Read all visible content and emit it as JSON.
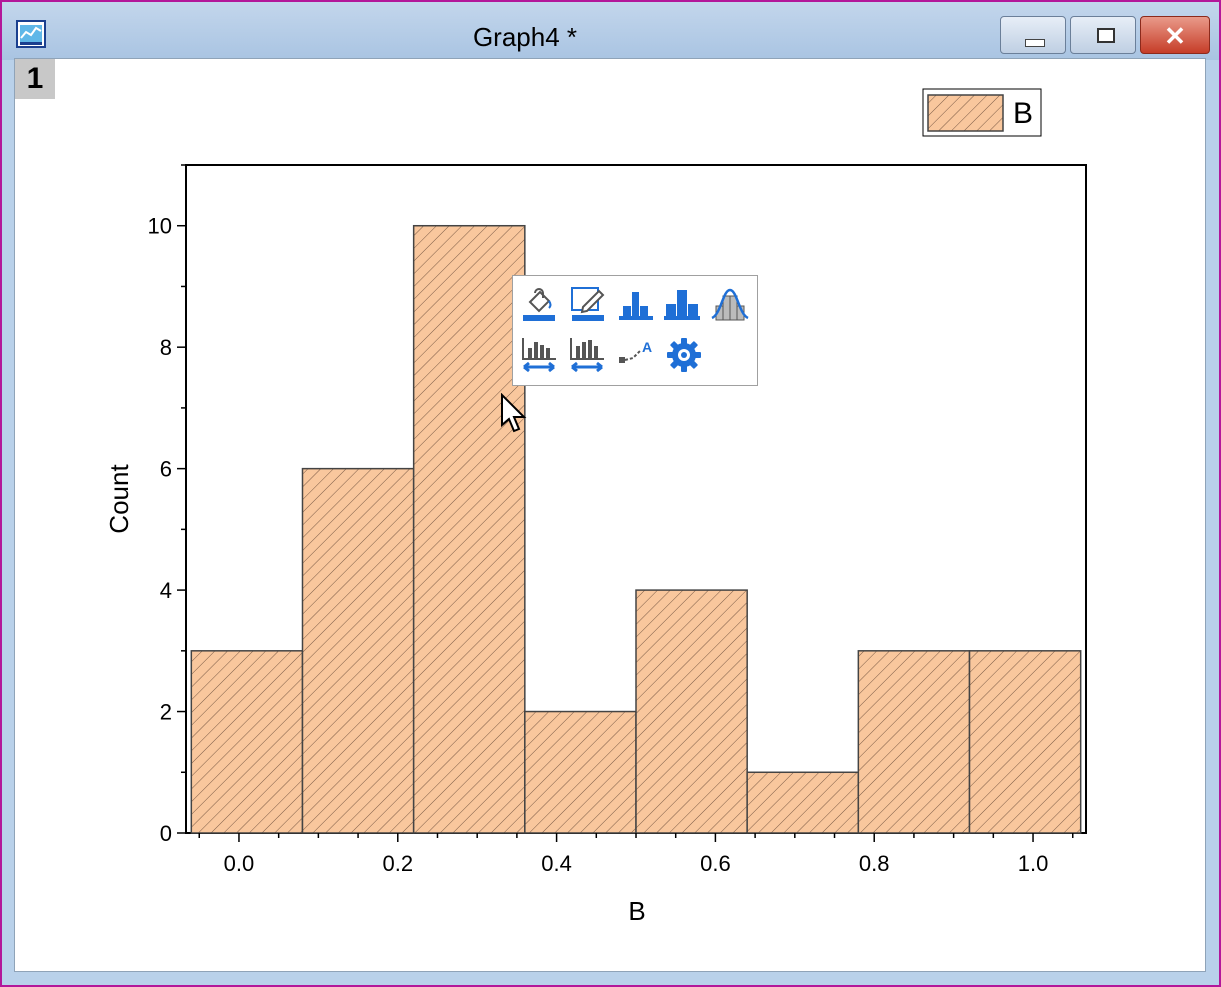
{
  "window": {
    "title": "Graph4 *",
    "layer_label": "1",
    "close_glyph": "✕",
    "buttons": [
      "minimize-icon",
      "maximize-icon",
      "close-icon"
    ]
  },
  "colors": {
    "bar_fill": "#f9c79d",
    "bar_stroke": "#444444",
    "hatch": "#7a5a45",
    "icon_blue": "#1f6fd6",
    "window_border": "#b3179a"
  },
  "chart_data": {
    "type": "bar",
    "title": "",
    "xlabel": "B",
    "ylabel": "Count",
    "xlim": [
      -0.0667,
      1.0667
    ],
    "ylim": [
      0,
      11
    ],
    "x_ticks": [
      "0.0",
      "0.2",
      "0.4",
      "0.6",
      "0.8",
      "1.0"
    ],
    "y_ticks": [
      "0",
      "2",
      "4",
      "6",
      "8",
      "10"
    ],
    "bins": [
      {
        "start": -0.06,
        "end": 0.08,
        "value": 3
      },
      {
        "start": 0.08,
        "end": 0.22,
        "value": 6
      },
      {
        "start": 0.22,
        "end": 0.36,
        "value": 10
      },
      {
        "start": 0.36,
        "end": 0.5,
        "value": 2
      },
      {
        "start": 0.5,
        "end": 0.64,
        "value": 4
      },
      {
        "start": 0.64,
        "end": 0.78,
        "value": 1
      },
      {
        "start": 0.78,
        "end": 0.92,
        "value": 3
      },
      {
        "start": 0.92,
        "end": 1.06,
        "value": 3
      }
    ],
    "series": [
      {
        "name": "B"
      }
    ],
    "legend": {
      "position": "top-right",
      "label": "B"
    },
    "grid": false
  },
  "mini_toolbar": {
    "row1": [
      "fill-color-icon",
      "border-color-icon",
      "bar-gap-icon",
      "bar-width-icon",
      "distribution-curve-icon"
    ],
    "row2": [
      "bin-width-icon",
      "bin-range-icon",
      "data-label-icon",
      "settings-gear-icon"
    ],
    "data_label_glyph": "A"
  }
}
